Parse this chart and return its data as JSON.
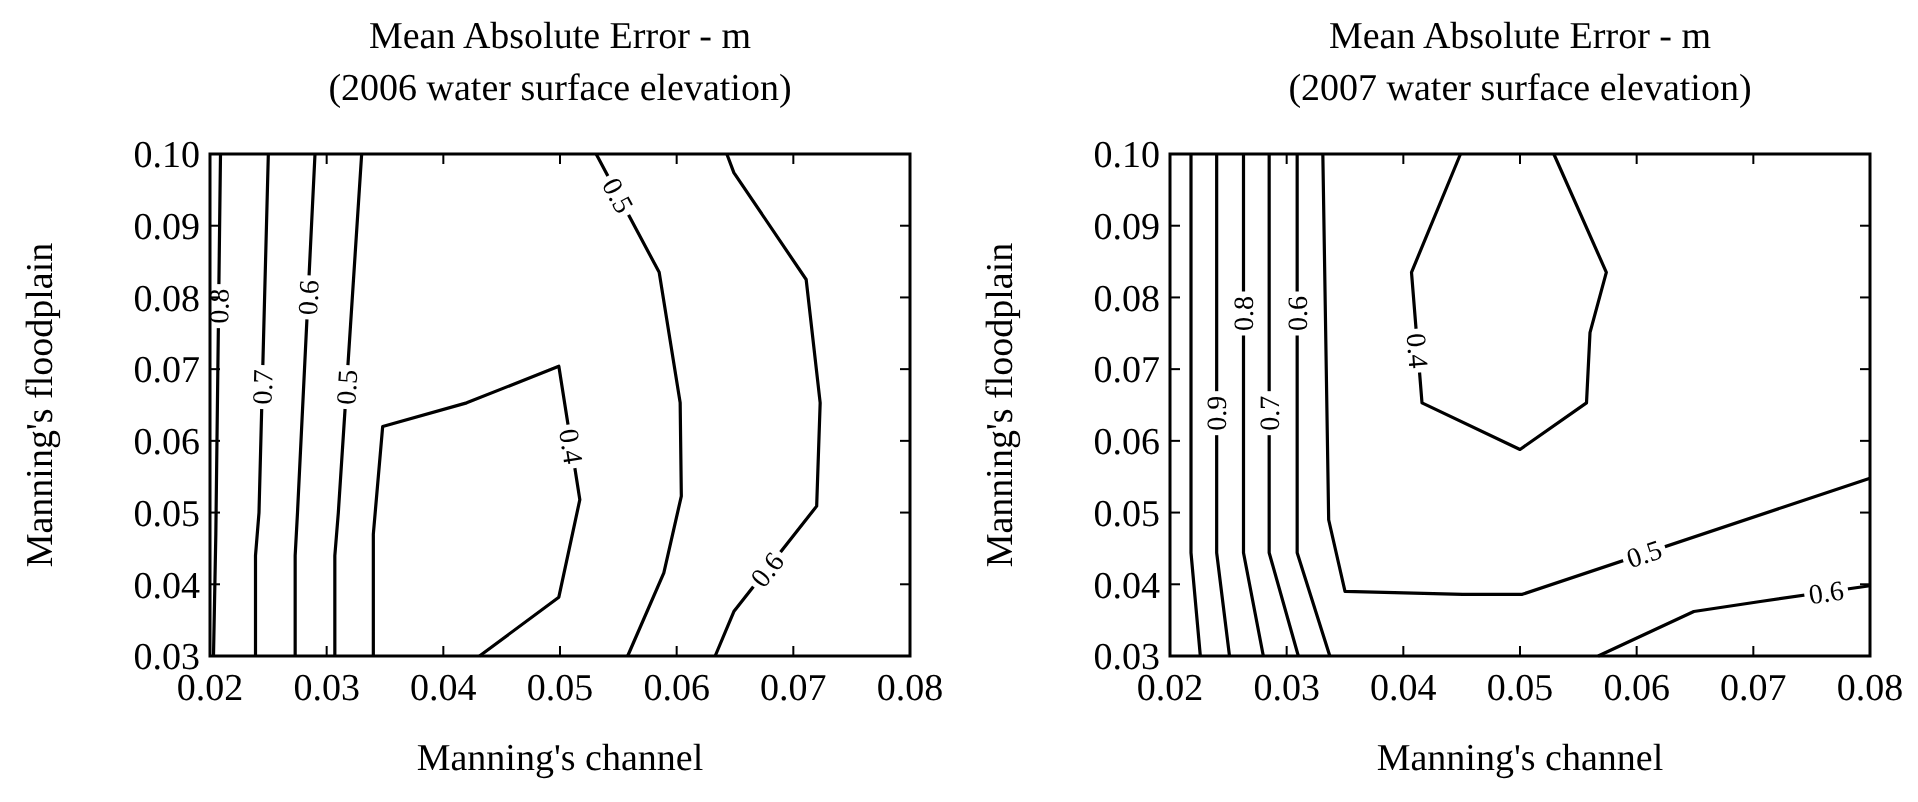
{
  "chart_data": [
    {
      "type": "line",
      "title": "Mean Absolute Error - m",
      "subtitle": "(2006 water surface elevation)",
      "xlabel": "Manning's channel",
      "ylabel": "Manning's floodplain",
      "xlim": [
        0.02,
        0.08
      ],
      "ylim": [
        0.03,
        0.1
      ],
      "xticks": [
        0.02,
        0.03,
        0.04,
        0.05,
        0.06,
        0.07,
        0.08
      ],
      "yticks": [
        0.03,
        0.04,
        0.05,
        0.06,
        0.07,
        0.08,
        0.09,
        {
          "value": 0.1,
          "label": "0.10"
        }
      ],
      "legend": false,
      "marker": "none",
      "line_style": "solid",
      "series": [
        {
          "name": "0.8",
          "color": "#000000",
          "x": [
            0.0203,
            0.0205,
            0.0209
          ],
          "values": [
            0.03,
            0.047,
            0.1
          ]
        },
        {
          "name": "0.7",
          "color": "#000000",
          "x": [
            0.0239,
            0.0239,
            0.0242,
            0.025
          ],
          "values": [
            0.03,
            0.044,
            0.05,
            0.1
          ]
        },
        {
          "name": "0.6",
          "color": "#000000",
          "x": [
            0.0273,
            0.0273,
            0.0275,
            0.029
          ],
          "values": [
            0.03,
            0.044,
            0.05,
            0.1
          ]
        },
        {
          "name": "0.5",
          "color": "#000000",
          "x": [
            0.0307,
            0.0307,
            0.031,
            0.033
          ],
          "values": [
            0.03,
            0.044,
            0.05,
            0.1
          ]
        },
        {
          "name": "0.4",
          "color": "#000000",
          "x": [
            0.034,
            0.034,
            0.0348,
            0.042,
            0.0499,
            0.0517,
            0.0499,
            0.0431
          ],
          "values": [
            0.03,
            0.047,
            0.062,
            0.0653,
            0.0704,
            0.0518,
            0.0382,
            0.03
          ]
        },
        {
          "name": "0.5",
          "color": "#000000",
          "x": [
            0.0531,
            0.0585,
            0.0603,
            0.0604,
            0.0589,
            0.0558
          ],
          "values": [
            0.1,
            0.0835,
            0.0653,
            0.0523,
            0.0416,
            0.03
          ]
        },
        {
          "name": "0.6",
          "color": "#000000",
          "x": [
            0.0643,
            0.0649,
            0.0711,
            0.0723,
            0.072,
            0.0649,
            0.0633
          ],
          "values": [
            0.1,
            0.0974,
            0.0825,
            0.0653,
            0.0509,
            0.0362,
            0.03
          ]
        }
      ]
    },
    {
      "type": "line",
      "title": "Mean Absolute Error - m",
      "subtitle": "(2007 water surface elevation)",
      "xlabel": "Manning's channel",
      "ylabel": "Manning's floodplain",
      "xlim": [
        0.02,
        0.08
      ],
      "ylim": [
        0.03,
        0.1
      ],
      "xticks": [
        0.02,
        0.03,
        0.04,
        0.05,
        0.06,
        0.07,
        0.08
      ],
      "yticks": [
        0.03,
        0.04,
        0.05,
        0.06,
        0.07,
        0.08,
        0.09,
        {
          "value": 0.1,
          "label": "0.10"
        }
      ],
      "legend": false,
      "marker": "none",
      "line_style": "solid",
      "series": [
        {
          "color": "#000000",
          "x": [
            0.0226,
            0.0218,
            0.0218
          ],
          "values": [
            0.03,
            0.0444,
            0.1
          ]
        },
        {
          "name": "0.9",
          "color": "#000000",
          "x": [
            0.0251,
            0.024,
            0.024
          ],
          "values": [
            0.03,
            0.0444,
            0.1
          ]
        },
        {
          "name": "0.8",
          "color": "#000000",
          "x": [
            0.028,
            0.0263,
            0.0263
          ],
          "values": [
            0.03,
            0.0444,
            0.1
          ]
        },
        {
          "name": "0.7",
          "color": "#000000",
          "x": [
            0.031,
            0.0285,
            0.0285
          ],
          "values": [
            0.03,
            0.0444,
            0.1
          ]
        },
        {
          "name": "0.6",
          "color": "#000000",
          "x": [
            0.0337,
            0.0309,
            0.0309,
            null,
            0.0567,
            0.0649,
            0.0706,
            0.08
          ],
          "values": [
            0.03,
            0.0444,
            0.1,
            null,
            0.03,
            0.0362,
            0.0376,
            0.0398
          ]
        },
        {
          "name": "0.5",
          "color": "#000000",
          "x": [
            0.0331,
            0.0336,
            0.035,
            0.0451,
            0.0502,
            0.08
          ],
          "values": [
            0.1,
            0.049,
            0.039,
            0.0386,
            0.0386,
            0.0548
          ]
        },
        {
          "name": "0.4",
          "color": "#000000",
          "x": [
            0.0449,
            0.0407,
            0.0416,
            0.05,
            0.0557,
            0.056,
            0.0574,
            0.0529
          ],
          "values": [
            0.1,
            0.0835,
            0.0653,
            0.0588,
            0.0653,
            0.0751,
            0.0835,
            0.1
          ]
        }
      ]
    }
  ]
}
